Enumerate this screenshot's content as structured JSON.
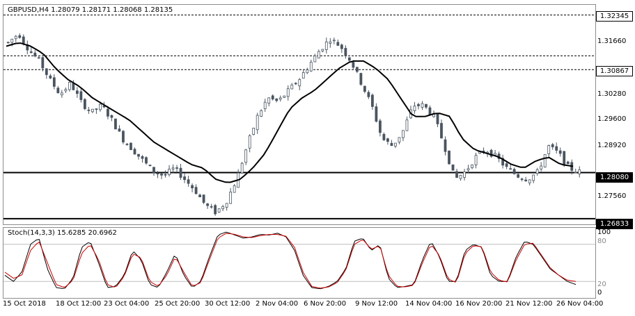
{
  "main": {
    "title": "GBPUSD,H4  1.28079 1.28171 1.28068 1.28135",
    "price_labels": [
      {
        "text": "1.31660",
        "style": "plain"
      },
      {
        "text": "1.30280",
        "style": "plain"
      },
      {
        "text": "1.29600",
        "style": "plain"
      },
      {
        "text": "1.28920",
        "style": "plain"
      },
      {
        "text": "1.27560",
        "style": "plain"
      }
    ],
    "level_boxes": [
      {
        "text": "1.32345",
        "style": "box"
      },
      {
        "text": "1.30867",
        "style": "box"
      },
      {
        "text": "1.28080",
        "style": "box-dark"
      },
      {
        "text": "1.26833",
        "style": "box-dark"
      }
    ]
  },
  "stoch": {
    "title": "Stoch(14,3,3) 15.6285 20.6962",
    "scale_labels": [
      "100",
      "80",
      "20",
      "0"
    ]
  },
  "time_axis": [
    "15 Oct 2018",
    "18 Oct 12:00",
    "23 Oct 04:00",
    "25 Oct 20:00",
    "30 Oct 12:00",
    "2 Nov 04:00",
    "6 Nov 20:00",
    "9 Nov 12:00",
    "14 Nov 04:00",
    "16 Nov 20:00",
    "21 Nov 12:00",
    "26 Nov 04:00"
  ],
  "colors": {
    "candles": "#4a5560",
    "ma": "#000000",
    "stoch_main": "#000000",
    "stoch_signal": "#cc0000",
    "grid": "#8c8c8c"
  },
  "chart_data": {
    "type": "candlestick",
    "symbol": "GBPUSD",
    "timeframe": "H4",
    "ohlc_last": {
      "open": 1.28079,
      "high": 1.28171,
      "low": 1.28068,
      "close": 1.28135
    },
    "price_range": [
      1.2668,
      1.3262
    ],
    "horizontal_levels": [
      1.32345,
      1.3124,
      1.30867,
      1.2808,
      1.26833
    ],
    "price_path": [
      1.316,
      1.3185,
      1.314,
      1.311,
      1.306,
      1.302,
      1.305,
      1.3,
      1.297,
      1.299,
      1.295,
      1.29,
      1.287,
      1.284,
      1.281,
      1.28,
      1.282,
      1.279,
      1.276,
      1.272,
      1.27,
      1.273,
      1.279,
      1.288,
      1.296,
      1.301,
      1.3,
      1.303,
      1.306,
      1.31,
      1.314,
      1.317,
      1.315,
      1.311,
      1.305,
      1.299,
      1.29,
      1.288,
      1.292,
      1.299,
      1.299,
      1.296,
      1.288,
      1.279,
      1.281,
      1.285,
      1.287,
      1.285,
      1.282,
      1.28,
      1.279,
      1.281,
      1.288,
      1.286,
      1.282,
      1.281
    ],
    "ma_path": [
      1.315,
      1.316,
      1.315,
      1.313,
      1.309,
      1.306,
      1.304,
      1.301,
      1.299,
      1.297,
      1.295,
      1.292,
      1.289,
      1.287,
      1.285,
      1.283,
      1.282,
      1.279,
      1.278,
      1.279,
      1.282,
      1.286,
      1.292,
      1.298,
      1.301,
      1.303,
      1.306,
      1.309,
      1.311,
      1.311,
      1.309,
      1.306,
      1.301,
      1.296,
      1.296,
      1.297,
      1.296,
      1.29,
      1.287,
      1.286,
      1.285,
      1.283,
      1.282,
      1.284,
      1.285,
      1.283,
      1.2825
    ],
    "stochastic": {
      "params": "14,3,3",
      "main_last": 15.6285,
      "signal_last": 20.6962,
      "levels": [
        80,
        20
      ],
      "main": [
        30,
        20,
        35,
        80,
        90,
        40,
        10,
        8,
        25,
        75,
        85,
        50,
        10,
        12,
        30,
        70,
        55,
        15,
        10,
        35,
        65,
        30,
        10,
        20,
        60,
        95,
        100,
        95,
        90,
        92,
        96,
        95,
        98,
        92,
        70,
        30,
        10,
        8,
        12,
        20,
        40,
        85,
        90,
        70,
        80,
        25,
        10,
        12,
        15,
        55,
        85,
        60,
        20,
        20,
        70,
        80,
        75,
        30,
        20,
        20,
        60,
        85,
        80,
        60,
        40,
        30,
        20,
        15
      ],
      "signal": [
        35,
        25,
        30,
        70,
        85,
        50,
        15,
        10,
        22,
        65,
        80,
        55,
        15,
        10,
        28,
        65,
        58,
        20,
        12,
        30,
        60,
        35,
        12,
        18,
        55,
        90,
        98,
        96,
        92,
        91,
        94,
        96,
        96,
        93,
        75,
        35,
        12,
        9,
        11,
        18,
        38,
        80,
        88,
        72,
        78,
        30,
        12,
        11,
        14,
        50,
        80,
        62,
        24,
        18,
        65,
        78,
        76,
        35,
        22,
        19,
        55,
        80,
        82,
        62,
        42,
        30,
        22,
        20
      ]
    }
  }
}
